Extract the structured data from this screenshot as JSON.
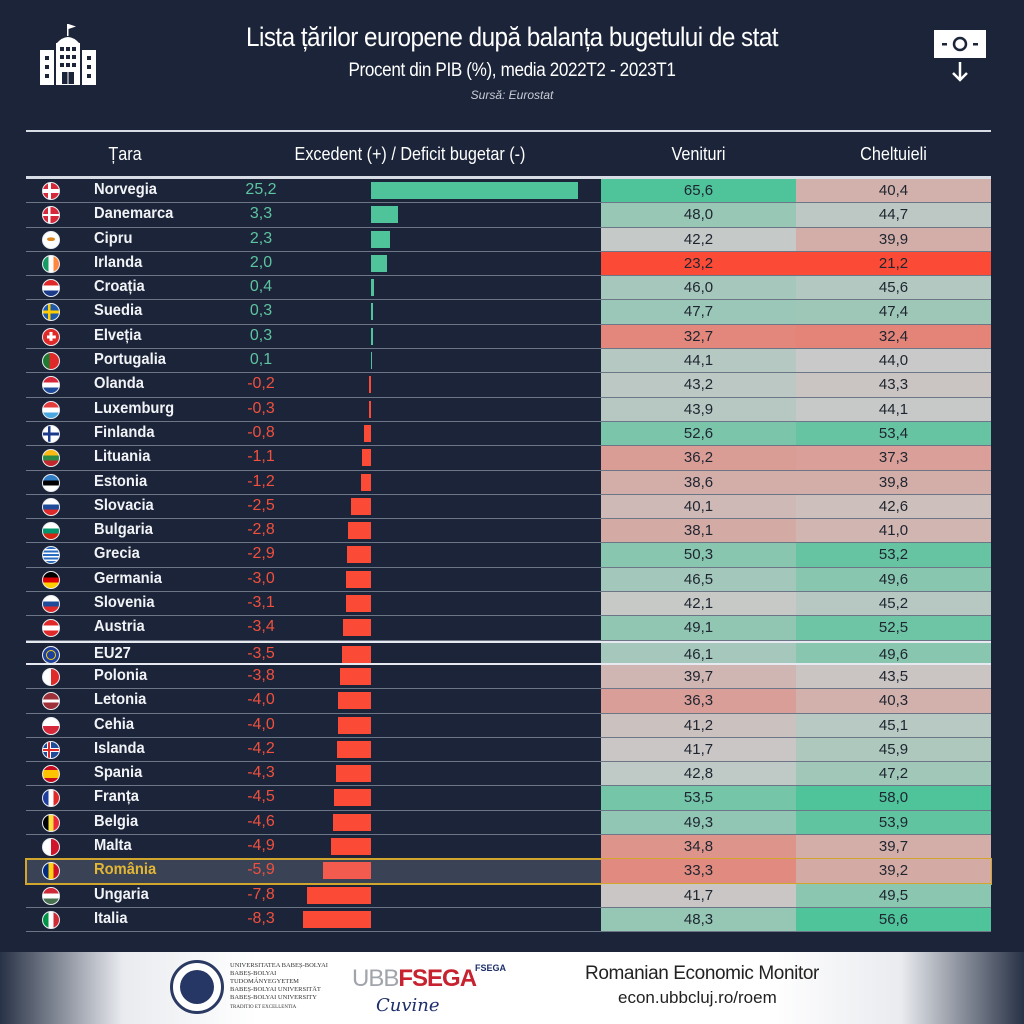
{
  "header": {
    "title": "Lista țărilor europene după balanța bugetului de stat",
    "subtitle": "Procent din PIB (%), media 2022T2 - 2023T1",
    "source": "Sursă: Eurostat",
    "left_icon": "government-building-icon",
    "right_icon": "banknote-down-icon"
  },
  "columns": {
    "country": "Țara",
    "balance": "Excedent (+) / Deficit bugetar (-)",
    "revenue": "Venituri",
    "expenditure": "Cheltuieli"
  },
  "colors": {
    "background": "#1b2438",
    "surplus": "#4fc39a",
    "deficit": "#fb4a36",
    "highlight_border": "#d2a52c",
    "highlight_text": "#e3b634"
  },
  "chart_data": {
    "type": "table",
    "title": "Lista țărilor europene după balanța bugetului de stat",
    "subtitle": "Procent din PIB (%), media 2022T2 - 2023T1",
    "units": "% of GDP",
    "highlighted": "România",
    "rows": [
      {
        "country": "Norvegia",
        "flag": "NO",
        "balance": 25.2,
        "balance_label": "25,2",
        "revenue": 65.6,
        "revenue_label": "65,6",
        "expenditure": 40.4,
        "expenditure_label": "40,4"
      },
      {
        "country": "Danemarca",
        "flag": "DK",
        "balance": 3.3,
        "balance_label": "3,3",
        "revenue": 48.0,
        "revenue_label": "48,0",
        "expenditure": 44.7,
        "expenditure_label": "44,7"
      },
      {
        "country": "Cipru",
        "flag": "CY",
        "balance": 2.3,
        "balance_label": "2,3",
        "revenue": 42.2,
        "revenue_label": "42,2",
        "expenditure": 39.9,
        "expenditure_label": "39,9"
      },
      {
        "country": "Irlanda",
        "flag": "IE",
        "balance": 2.0,
        "balance_label": "2,0",
        "revenue": 23.2,
        "revenue_label": "23,2",
        "expenditure": 21.2,
        "expenditure_label": "21,2"
      },
      {
        "country": "Croația",
        "flag": "HR",
        "balance": 0.4,
        "balance_label": "0,4",
        "revenue": 46.0,
        "revenue_label": "46,0",
        "expenditure": 45.6,
        "expenditure_label": "45,6"
      },
      {
        "country": "Suedia",
        "flag": "SE",
        "balance": 0.3,
        "balance_label": "0,3",
        "revenue": 47.7,
        "revenue_label": "47,7",
        "expenditure": 47.4,
        "expenditure_label": "47,4"
      },
      {
        "country": "Elveția",
        "flag": "CH",
        "balance": 0.3,
        "balance_label": "0,3",
        "revenue": 32.7,
        "revenue_label": "32,7",
        "expenditure": 32.4,
        "expenditure_label": "32,4"
      },
      {
        "country": "Portugalia",
        "flag": "PT",
        "balance": 0.1,
        "balance_label": "0,1",
        "revenue": 44.1,
        "revenue_label": "44,1",
        "expenditure": 44.0,
        "expenditure_label": "44,0"
      },
      {
        "country": "Olanda",
        "flag": "NL",
        "balance": -0.2,
        "balance_label": "-0,2",
        "revenue": 43.2,
        "revenue_label": "43,2",
        "expenditure": 43.3,
        "expenditure_label": "43,3"
      },
      {
        "country": "Luxemburg",
        "flag": "LU",
        "balance": -0.3,
        "balance_label": "-0,3",
        "revenue": 43.9,
        "revenue_label": "43,9",
        "expenditure": 44.1,
        "expenditure_label": "44,1"
      },
      {
        "country": "Finlanda",
        "flag": "FI",
        "balance": -0.8,
        "balance_label": "-0,8",
        "revenue": 52.6,
        "revenue_label": "52,6",
        "expenditure": 53.4,
        "expenditure_label": "53,4"
      },
      {
        "country": "Lituania",
        "flag": "LT",
        "balance": -1.1,
        "balance_label": "-1,1",
        "revenue": 36.2,
        "revenue_label": "36,2",
        "expenditure": 37.3,
        "expenditure_label": "37,3"
      },
      {
        "country": "Estonia",
        "flag": "EE",
        "balance": -1.2,
        "balance_label": "-1,2",
        "revenue": 38.6,
        "revenue_label": "38,6",
        "expenditure": 39.8,
        "expenditure_label": "39,8"
      },
      {
        "country": "Slovacia",
        "flag": "SK",
        "balance": -2.5,
        "balance_label": "-2,5",
        "revenue": 40.1,
        "revenue_label": "40,1",
        "expenditure": 42.6,
        "expenditure_label": "42,6"
      },
      {
        "country": "Bulgaria",
        "flag": "BG",
        "balance": -2.8,
        "balance_label": "-2,8",
        "revenue": 38.1,
        "revenue_label": "38,1",
        "expenditure": 41.0,
        "expenditure_label": "41,0"
      },
      {
        "country": "Grecia",
        "flag": "GR",
        "balance": -2.9,
        "balance_label": "-2,9",
        "revenue": 50.3,
        "revenue_label": "50,3",
        "expenditure": 53.2,
        "expenditure_label": "53,2"
      },
      {
        "country": "Germania",
        "flag": "DE",
        "balance": -3.0,
        "balance_label": "-3,0",
        "revenue": 46.5,
        "revenue_label": "46,5",
        "expenditure": 49.6,
        "expenditure_label": "49,6"
      },
      {
        "country": "Slovenia",
        "flag": "SI",
        "balance": -3.1,
        "balance_label": "-3,1",
        "revenue": 42.1,
        "revenue_label": "42,1",
        "expenditure": 45.2,
        "expenditure_label": "45,2"
      },
      {
        "country": "Austria",
        "flag": "AT",
        "balance": -3.4,
        "balance_label": "-3,4",
        "revenue": 49.1,
        "revenue_label": "49,1",
        "expenditure": 52.5,
        "expenditure_label": "52,5"
      },
      {
        "country": "EU27",
        "flag": "EU",
        "balance": -3.5,
        "balance_label": "-3,5",
        "revenue": 46.1,
        "revenue_label": "46,1",
        "expenditure": 49.6,
        "expenditure_label": "49,6"
      },
      {
        "country": "Polonia",
        "flag": "PL",
        "balance": -3.8,
        "balance_label": "-3,8",
        "revenue": 39.7,
        "revenue_label": "39,7",
        "expenditure": 43.5,
        "expenditure_label": "43,5"
      },
      {
        "country": "Letonia",
        "flag": "LV",
        "balance": -4.0,
        "balance_label": "-4,0",
        "revenue": 36.3,
        "revenue_label": "36,3",
        "expenditure": 40.3,
        "expenditure_label": "40,3"
      },
      {
        "country": "Cehia",
        "flag": "CZ",
        "balance": -4.0,
        "balance_label": "-4,0",
        "revenue": 41.2,
        "revenue_label": "41,2",
        "expenditure": 45.1,
        "expenditure_label": "45,1"
      },
      {
        "country": "Islanda",
        "flag": "IS",
        "balance": -4.2,
        "balance_label": "-4,2",
        "revenue": 41.7,
        "revenue_label": "41,7",
        "expenditure": 45.9,
        "expenditure_label": "45,9"
      },
      {
        "country": "Spania",
        "flag": "ES",
        "balance": -4.3,
        "balance_label": "-4,3",
        "revenue": 42.8,
        "revenue_label": "42,8",
        "expenditure": 47.2,
        "expenditure_label": "47,2"
      },
      {
        "country": "Franța",
        "flag": "FR",
        "balance": -4.5,
        "balance_label": "-4,5",
        "revenue": 53.5,
        "revenue_label": "53,5",
        "expenditure": 58.0,
        "expenditure_label": "58,0"
      },
      {
        "country": "Belgia",
        "flag": "BE",
        "balance": -4.6,
        "balance_label": "-4,6",
        "revenue": 49.3,
        "revenue_label": "49,3",
        "expenditure": 53.9,
        "expenditure_label": "53,9"
      },
      {
        "country": "Malta",
        "flag": "MT",
        "balance": -4.9,
        "balance_label": "-4,9",
        "revenue": 34.8,
        "revenue_label": "34,8",
        "expenditure": 39.7,
        "expenditure_label": "39,7"
      },
      {
        "country": "România",
        "flag": "RO",
        "balance": -5.9,
        "balance_label": "-5,9",
        "revenue": 33.3,
        "revenue_label": "33,3",
        "expenditure": 39.2,
        "expenditure_label": "39,2"
      },
      {
        "country": "Ungaria",
        "flag": "HU",
        "balance": -7.8,
        "balance_label": "-7,8",
        "revenue": 41.7,
        "revenue_label": "41,7",
        "expenditure": 49.5,
        "expenditure_label": "49,5"
      },
      {
        "country": "Italia",
        "flag": "IT",
        "balance": -8.3,
        "balance_label": "-8,3",
        "revenue": 48.3,
        "revenue_label": "48,3",
        "expenditure": 56.6,
        "expenditure_label": "56,6"
      }
    ]
  },
  "footer": {
    "university_lines": [
      "UNIVERSITATEA BABEȘ-BOLYAI",
      "BABEȘ-BOLYAI TUDOMÁNYEGYETEM",
      "BABEȘ-BOLYAI UNIVERSITÄT",
      "BABEȘ-BOLYAI UNIVERSITY",
      "TRADITIO ET EXCELLENTIA"
    ],
    "fsega_ubb": "UBB",
    "fsega_name": "FSEGA",
    "fsega_mark": "FSEGA",
    "fsega_signature": "Cuvine",
    "monitor_title": "Romanian Economic Monitor",
    "monitor_url": "econ.ubbcluj.ro/roem"
  }
}
